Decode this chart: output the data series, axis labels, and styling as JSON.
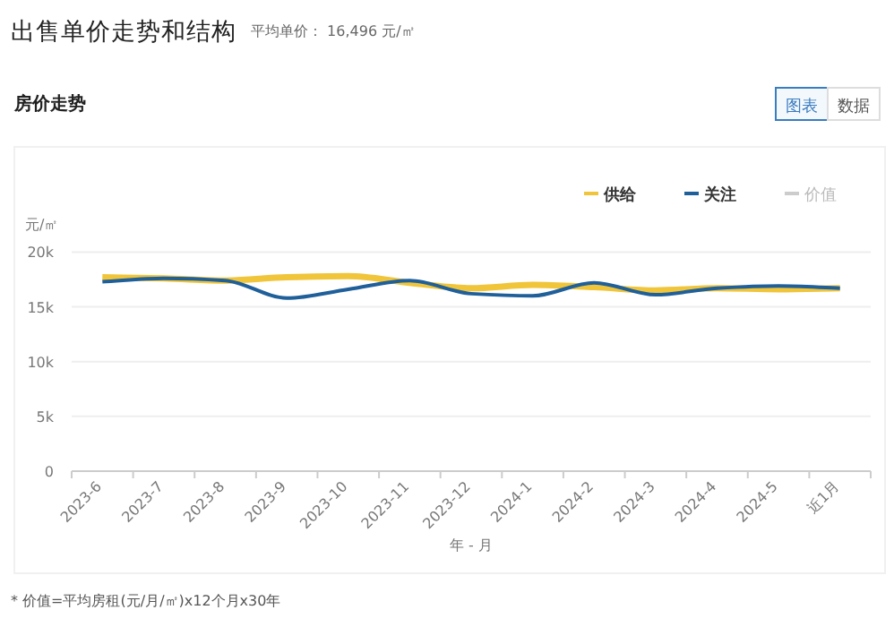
{
  "chart_data": {
    "type": "line",
    "title": "出售单价走势和结构",
    "subtitle": "平均单价： 16,496 元/㎡",
    "annotations": [
      "房价走势",
      "图表",
      "数据",
      "* 价值=平均房租(元/月/㎡)x12个月x30年"
    ],
    "xlabel": "年 - 月",
    "ylabel": "元/㎡",
    "categories": [
      "2023-6",
      "2023-7",
      "2023-8",
      "2023-9",
      "2023-10",
      "2023-11",
      "2023-12",
      "2024-1",
      "2024-2",
      "2024-3",
      "2024-4",
      "2024-5",
      "近1月"
    ],
    "series": [
      {
        "name": "供给",
        "color": "#f0c53a",
        "values": [
          17700,
          17600,
          17400,
          17700,
          17800,
          17200,
          16700,
          17000,
          16800,
          16500,
          16700,
          16600,
          16700
        ]
      },
      {
        "name": "关注",
        "color": "#1f5f9a",
        "values": [
          17300,
          17600,
          17400,
          15800,
          16600,
          17400,
          16200,
          16000,
          17200,
          16100,
          16700,
          16900,
          16700
        ]
      },
      {
        "name": "价值",
        "color": "#cccccc",
        "values": [
          null,
          null,
          null,
          null,
          null,
          null,
          null,
          null,
          null,
          null,
          null,
          null,
          null
        ]
      }
    ],
    "ylim": [
      0,
      20000
    ],
    "yticks": [
      {
        "value": 0,
        "label": "0"
      },
      {
        "value": 5000,
        "label": "5k"
      },
      {
        "value": 10000,
        "label": "10k"
      },
      {
        "value": 15000,
        "label": "15k"
      },
      {
        "value": 20000,
        "label": "20k"
      }
    ],
    "grid": "y",
    "legend": "top right",
    "marker": "none",
    "line_style": "solid"
  }
}
